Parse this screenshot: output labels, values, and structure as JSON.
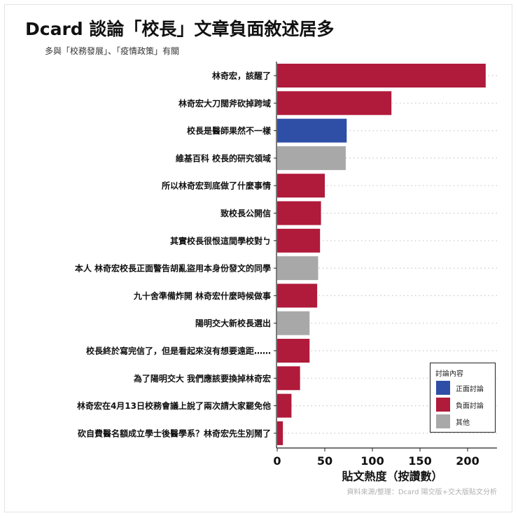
{
  "title": "Dcard 談論「校長」文章負面敘述居多",
  "subtitle": "多與「校務發展」、「疫情政策」有關",
  "caption": "資料來源/整理：Dcard 陽交版+交大版貼文分析",
  "colors": {
    "positive": "#2f4ea6",
    "negative": "#b01a3b",
    "other": "#a8a8a8"
  },
  "legend": {
    "title": "討論內容",
    "items": [
      {
        "key": "positive",
        "label": "正面討論"
      },
      {
        "key": "negative",
        "label": "負面討論"
      },
      {
        "key": "other",
        "label": "其他"
      }
    ]
  },
  "chart_data": {
    "type": "bar",
    "orientation": "horizontal",
    "xlabel": "貼文熱度（按讚數）",
    "ylabel": "",
    "xlim": [
      0,
      230
    ],
    "xticks": [
      0,
      50,
      100,
      150,
      200
    ],
    "grid": "dotted horizontal lines per category",
    "legend_position": "bottom-right",
    "categories": [
      "林奇宏，該醒了",
      "林奇宏大刀闊斧砍掉跨域",
      "校長是醫師果然不一樣",
      "維基百科 校長的研究領域",
      "所以林奇宏到底做了什麼事情",
      "致校長公開信",
      "其實校長很恨這間學校對ㄅ",
      "本人 林奇宏校長正面警告胡亂盜用本身份發文的同學",
      "九十舍準備炸開 林奇宏什麼時候做事",
      "陽明交大新校長選出",
      "校長終於寫完信了，但是看起來沒有想要遠距……",
      "為了陽明交大 我們應該要換掉林奇宏",
      "林奇宏在4月13日校務會議上說了兩次請大家罷免他",
      "砍自費醫名額成立學士後醫學系？林奇宏先生別鬧了"
    ],
    "values": [
      219,
      120,
      73,
      72,
      50,
      46,
      45,
      43,
      42,
      34,
      34,
      24,
      15,
      6
    ],
    "sentiment": [
      "negative",
      "negative",
      "positive",
      "other",
      "negative",
      "negative",
      "negative",
      "other",
      "negative",
      "other",
      "negative",
      "negative",
      "negative",
      "negative"
    ]
  }
}
